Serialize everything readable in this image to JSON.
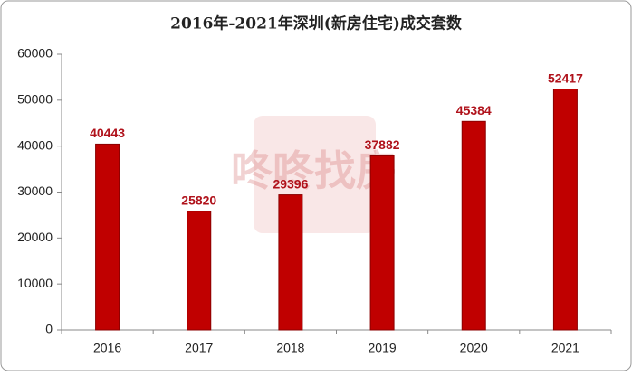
{
  "chart_data": {
    "type": "bar",
    "title": "2016年-2021年深圳(新房住宅)成交套数",
    "categories": [
      "2016",
      "2017",
      "2018",
      "2019",
      "2020",
      "2021"
    ],
    "values": [
      40443,
      25820,
      29396,
      37882,
      45384,
      52417
    ],
    "color": "#c00000",
    "label_color": "#b0121b",
    "ylim": [
      0,
      60000
    ],
    "yticks": [
      0,
      10000,
      20000,
      30000,
      40000,
      50000,
      60000
    ],
    "grid": false,
    "watermark": "咚咚找房"
  }
}
